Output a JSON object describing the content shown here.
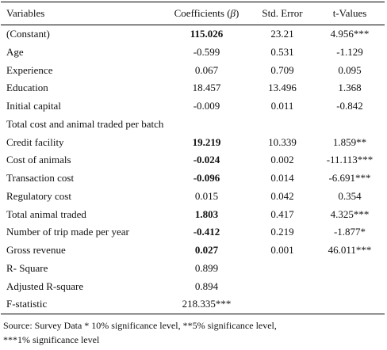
{
  "table": {
    "headers": {
      "variables": "Variables",
      "coefficients": "Coefficients",
      "beta_open": "(",
      "beta_symbol": "β",
      "beta_close": ")",
      "std_error": "Std. Error",
      "t_values": "t-Values"
    },
    "rows": [
      {
        "variable": "(Constant)",
        "coef": "115.026",
        "se": "23.21",
        "t": "4.956***",
        "bold": true
      },
      {
        "variable": "Age",
        "coef": "-0.599",
        "se": "0.531",
        "t": "-1.129",
        "bold": false
      },
      {
        "variable": "Experience",
        "coef": "0.067",
        "se": "0.709",
        "t": "0.095",
        "bold": false
      },
      {
        "variable": "Education",
        "coef": "18.457",
        "se": "13.496",
        "t": "1.368",
        "bold": false
      },
      {
        "variable": "Initial capital",
        "coef": "-0.009",
        "se": "0.011",
        "t": "-0.842",
        "bold": false
      },
      {
        "variable": "Total cost and animal traded per batch/ trip",
        "coef": "",
        "se": "",
        "t": "",
        "section": true
      },
      {
        "variable": "Credit facility",
        "coef": "19.219",
        "se": "10.339",
        "t": "1.859**",
        "bold": true
      },
      {
        "variable": "Cost of animals",
        "coef": "-0.024",
        "se": "0.002",
        "t": "-11.113***",
        "bold": true
      },
      {
        "variable": "Transaction cost",
        "coef": "-0.096",
        "se": "0.014",
        "t": "-6.691***",
        "bold": true
      },
      {
        "variable": "Regulatory cost",
        "coef": "0.015",
        "se": "0.042",
        "t": "0.354",
        "bold": false
      },
      {
        "variable": "Total animal traded",
        "coef": "1.803",
        "se": "0.417",
        "t": "4.325***",
        "bold": true
      },
      {
        "variable": "Number of trip made per year",
        "coef": "-0.412",
        "se": "0.219",
        "t": "-1.877*",
        "bold": true
      },
      {
        "variable": "Gross revenue",
        "coef": "0.027",
        "se": "0.001",
        "t": "46.011***",
        "bold": true
      },
      {
        "variable": "R- Square",
        "coef": "0.899",
        "se": "",
        "t": "",
        "bold": false
      },
      {
        "variable": "Adjusted R-square",
        "coef": "0.894",
        "se": "",
        "t": "",
        "bold": false
      },
      {
        "variable": "F-statistic",
        "coef": "218.335***",
        "se": "",
        "t": "",
        "bold": false
      }
    ]
  },
  "footnote": {
    "line1": "Source: Survey Data     * 10% significance level, **5% significance level,",
    "line2": "***1% significance level"
  }
}
